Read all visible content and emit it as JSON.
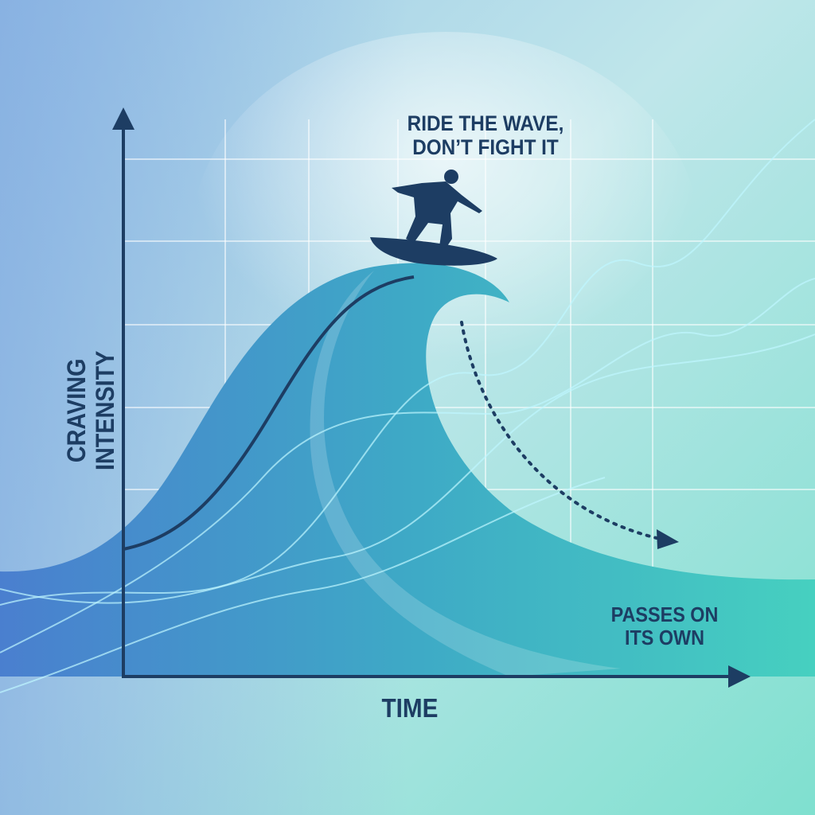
{
  "diagram": {
    "title_line1": "RIDE THE WAVE,",
    "title_line2": "DON’T FIGHT IT",
    "y_axis_label": "CRAVING INTENSITY",
    "x_axis_label": "TIME",
    "annotation_line1": "PASSES ON",
    "annotation_line2": "ITS OWN",
    "icons": [
      "surfer-silhouette-icon",
      "dotted-arrow-icon"
    ],
    "colors": {
      "text": "#1d3d63",
      "axis": "#1d3d63",
      "wave_blue": "#4a86cf",
      "wave_teal": "#3fc1c0",
      "background": "#a8d8e4"
    }
  }
}
